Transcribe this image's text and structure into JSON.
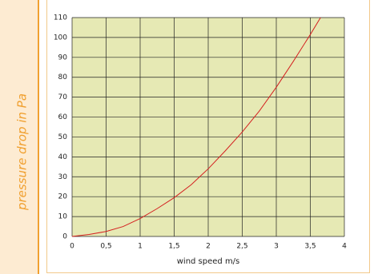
{
  "chart_data": {
    "type": "line",
    "y_label": "pressure drop in Pa",
    "x_label": "wind speed m/s",
    "x": [
      0,
      0.25,
      0.5,
      0.75,
      1,
      1.25,
      1.5,
      1.75,
      2,
      2.25,
      2.5,
      2.75,
      3,
      3.25,
      3.5,
      3.65
    ],
    "values": [
      0,
      1,
      2.5,
      5,
      9,
      14,
      19.5,
      26,
      34,
      43,
      52.5,
      63,
      75,
      88,
      101.5,
      110
    ],
    "color": "#d42020",
    "xlim": [
      0,
      4
    ],
    "ylim": [
      0,
      110
    ],
    "xticks": [
      0,
      {
        "value": 0.5,
        "label": "0,5"
      },
      1,
      {
        "value": 1.5,
        "label": "1,5"
      },
      2,
      {
        "value": 2.5,
        "label": "2,5"
      },
      3,
      {
        "value": 3.5,
        "label": "3,5"
      },
      4
    ],
    "yticks": [
      0,
      10,
      20,
      30,
      40,
      50,
      60,
      70,
      80,
      90,
      100,
      110
    ],
    "grid": true
  }
}
